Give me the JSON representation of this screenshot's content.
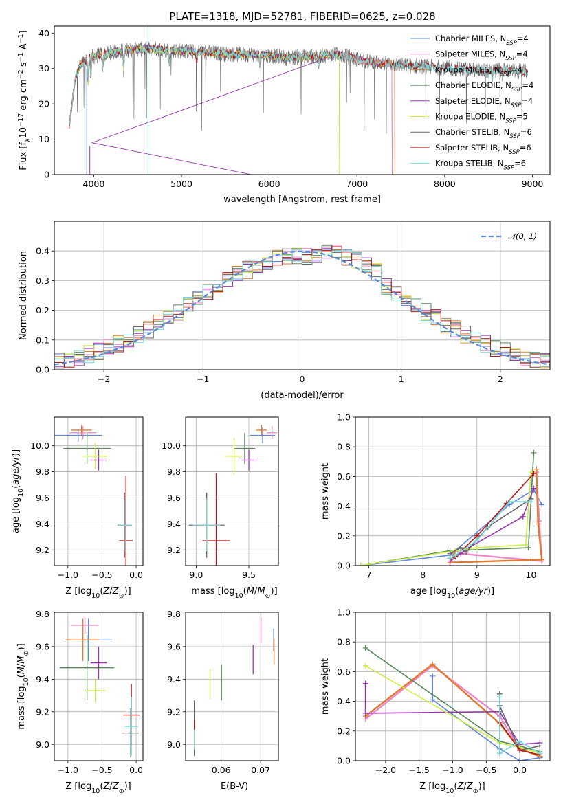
{
  "title": "PLATE=1318, MJD=52781, FIBERID=0625, z=0.028",
  "models": [
    {
      "name": "Chabrier MILES, N",
      "nssp": "4",
      "color": "#5f86dd"
    },
    {
      "name": "Salpeter MILES, N",
      "nssp": "4",
      "color": "#ee88c8"
    },
    {
      "name": "Kroupa MILES, N",
      "nssp": "4",
      "color": "#e07a2e"
    },
    {
      "name": "Chabrier ELODIE, N",
      "nssp": "4",
      "color": "#5a8a5a"
    },
    {
      "name": "Salpeter ELODIE, N",
      "nssp": "4",
      "color": "#9a33b0"
    },
    {
      "name": "Kroupa ELODIE, N",
      "nssp": "5",
      "color": "#ccee44"
    },
    {
      "name": "Chabrier STELIB, N",
      "nssp": "6",
      "color": "#666666"
    },
    {
      "name": "Salpeter STELIB, N",
      "nssp": "6",
      "color": "#b51818"
    },
    {
      "name": "Kroupa STELIB, N",
      "nssp": "6",
      "color": "#77d8d8"
    }
  ],
  "chart_data": [
    {
      "id": "spectrum",
      "type": "line",
      "xlabel": "wavelength [Angstrom, rest frame]",
      "ylabel": "Flux [f",
      "xlim": [
        3550,
        9200
      ],
      "ylim": [
        0,
        42
      ],
      "xticks": [
        4000,
        5000,
        6000,
        7000,
        8000,
        9000
      ],
      "yticks": [
        0,
        10,
        20,
        30,
        40
      ],
      "continuum": [
        [
          3720,
          20
        ],
        [
          3780,
          27
        ],
        [
          3850,
          31
        ],
        [
          3950,
          33
        ],
        [
          4100,
          34
        ],
        [
          4300,
          35
        ],
        [
          4500,
          35.5
        ],
        [
          4700,
          35.5
        ],
        [
          5000,
          35
        ],
        [
          5300,
          34.5
        ],
        [
          5600,
          34
        ],
        [
          5900,
          34
        ],
        [
          6200,
          33
        ],
        [
          6500,
          33.5
        ],
        [
          6800,
          34
        ],
        [
          7100,
          32
        ],
        [
          7500,
          31
        ],
        [
          7800,
          30.5
        ],
        [
          8100,
          30
        ],
        [
          8400,
          29.5
        ],
        [
          8700,
          29.5
        ],
        [
          8950,
          29
        ]
      ],
      "endpoints": {
        "Chabrier MILES": 7400,
        "Salpeter MILES": 7400,
        "Kroupa MILES": 7430,
        "Chabrier ELODIE": 6800,
        "Salpeter ELODIE": 6800,
        "Kroupa ELODIE": 6800,
        "Chabrier STELIB": 8950,
        "Salpeter STELIB": 8950,
        "Kroupa STELIB": 8950
      }
    },
    {
      "id": "residuals",
      "type": "histogram",
      "xlabel": "(data-model)/error",
      "ylabel": "Normed distribution",
      "xlim": [
        -2.5,
        2.5
      ],
      "ylim": [
        0,
        0.5
      ],
      "xticks": [
        -2,
        -1,
        0,
        1,
        2
      ],
      "yticks": [
        0.0,
        0.1,
        0.2,
        0.3,
        0.4
      ],
      "bin_width": 0.1,
      "legend": "𝒩(0, 1)",
      "gaussian": {
        "mean": 0,
        "sigma": 1
      }
    },
    {
      "id": "age_vs_Z",
      "type": "scatter",
      "xlabel": "Z [log",
      "ylabel": "age  [log",
      "xlim": [
        -1.2,
        0.1
      ],
      "ylim": [
        9.08,
        10.22
      ],
      "xticks": [
        -1.0,
        -0.5,
        0.0
      ],
      "yticks": [
        9.2,
        9.4,
        9.6,
        9.8,
        10.0
      ],
      "points": [
        {
          "x": -0.85,
          "y": 10.08,
          "xerr": 0.35,
          "yerr": 0.05
        },
        {
          "x": -0.78,
          "y": 10.1,
          "xerr": 0.2,
          "yerr": 0.05
        },
        {
          "x": -0.8,
          "y": 10.12,
          "xerr": 0.15,
          "yerr": 0.04
        },
        {
          "x": -0.72,
          "y": 9.98,
          "xerr": 0.35,
          "yerr": 0.12
        },
        {
          "x": -0.55,
          "y": 9.89,
          "xerr": 0.12,
          "yerr": 0.08
        },
        {
          "x": -0.6,
          "y": 9.92,
          "xerr": 0.18,
          "yerr": 0.1
        },
        {
          "x": -0.17,
          "y": 9.39,
          "xerr": 0.1,
          "yerr": 0.25
        },
        {
          "x": -0.15,
          "y": 9.27,
          "xerr": 0.1,
          "yerr": 0.5
        },
        {
          "x": -0.16,
          "y": 9.39,
          "xerr": 0.1,
          "yerr": 0.2
        }
      ]
    },
    {
      "id": "age_vs_mass",
      "type": "scatter",
      "xlabel": "mass [log",
      "ylabel": "",
      "xlim": [
        8.9,
        9.78
      ],
      "ylim": [
        9.08,
        10.22
      ],
      "xticks": [
        9.0,
        9.5
      ],
      "yticks": [
        9.2,
        9.4,
        9.6,
        9.8,
        10.0
      ],
      "points": [
        {
          "x": 9.63,
          "y": 10.08,
          "xerr": 0.12,
          "yerr": 0.06
        },
        {
          "x": 9.72,
          "y": 10.1,
          "xerr": 0.05,
          "yerr": 0.05
        },
        {
          "x": 9.62,
          "y": 10.12,
          "xerr": 0.05,
          "yerr": 0.04
        },
        {
          "x": 9.46,
          "y": 9.98,
          "xerr": 0.1,
          "yerr": 0.12
        },
        {
          "x": 9.5,
          "y": 9.89,
          "xerr": 0.08,
          "yerr": 0.08
        },
        {
          "x": 9.36,
          "y": 9.92,
          "xerr": 0.08,
          "yerr": 0.14
        },
        {
          "x": 9.1,
          "y": 9.39,
          "xerr": 0.17,
          "yerr": 0.25
        },
        {
          "x": 9.19,
          "y": 9.27,
          "xerr": 0.13,
          "yerr": 0.52
        },
        {
          "x": 9.1,
          "y": 9.39,
          "xerr": 0.13,
          "yerr": 0.2
        }
      ]
    },
    {
      "id": "weight_vs_age",
      "type": "line",
      "xlabel": "age  [log",
      "ylabel": "mass weight",
      "xlim": [
        6.75,
        10.35
      ],
      "ylim": [
        0,
        1
      ],
      "xticks": [
        7,
        8,
        9,
        10
      ],
      "yticks": [
        0.0,
        0.2,
        0.4,
        0.6,
        0.8,
        1.0
      ],
      "series": [
        [
          [
            10.2,
            0.41
          ],
          [
            10.05,
            0.51
          ],
          [
            9.6,
            0.41
          ],
          [
            8.5,
            0.07
          ],
          [
            6.85,
            0.0
          ]
        ],
        [
          [
            10.1,
            0.63
          ],
          [
            10.15,
            0.3
          ],
          [
            10.2,
            0.03
          ],
          [
            8.7,
            0.08
          ],
          [
            8.6,
            0.1
          ]
        ],
        [
          [
            10.1,
            0.65
          ],
          [
            10.13,
            0.28
          ],
          [
            10.2,
            0.04
          ],
          [
            8.5,
            0.02
          ],
          [
            8.6,
            0.1
          ]
        ],
        [
          [
            10.05,
            0.76
          ],
          [
            9.95,
            0.12
          ],
          [
            8.5,
            0.1
          ],
          [
            6.85,
            0.0
          ]
        ],
        [
          [
            10.05,
            0.52
          ],
          [
            9.85,
            0.33
          ],
          [
            8.8,
            0.11
          ],
          [
            8.7,
            0.08
          ],
          [
            8.5,
            0.03
          ]
        ],
        [
          [
            10.0,
            0.63
          ],
          [
            9.9,
            0.14
          ],
          [
            9.0,
            0.12
          ],
          [
            8.6,
            0.1
          ],
          [
            6.85,
            0.0
          ]
        ],
        [
          [
            10.0,
            0.45
          ],
          [
            9.2,
            0.26
          ],
          [
            8.8,
            0.09
          ],
          [
            8.7,
            0.12
          ],
          [
            8.5,
            0.08
          ]
        ],
        [
          [
            10.05,
            0.62
          ],
          [
            9.55,
            0.42
          ],
          [
            9.0,
            0.2
          ],
          [
            8.6,
            0.06
          ],
          [
            8.5,
            0.05
          ]
        ],
        [
          [
            10.0,
            0.43
          ],
          [
            9.6,
            0.43
          ],
          [
            9.0,
            0.17
          ],
          [
            8.6,
            0.07
          ],
          [
            8.5,
            0.05
          ]
        ]
      ]
    },
    {
      "id": "mass_vs_Z",
      "type": "scatter",
      "xlabel": "Z [log",
      "ylabel": "mass [log",
      "xlim": [
        -1.2,
        0.1
      ],
      "ylim": [
        8.9,
        9.81
      ],
      "xticks": [
        -1.0,
        -0.5,
        0.0
      ],
      "yticks": [
        9.0,
        9.2,
        9.4,
        9.6,
        9.8
      ],
      "points": [
        {
          "x": -0.7,
          "y": 9.64,
          "xerr": 0.35,
          "yerr": 0.13
        },
        {
          "x": -0.75,
          "y": 9.73,
          "xerr": 0.2,
          "yerr": 0.05
        },
        {
          "x": -0.78,
          "y": 9.64,
          "xerr": 0.25,
          "yerr": 0.13
        },
        {
          "x": -0.72,
          "y": 9.47,
          "xerr": 0.4,
          "yerr": 0.2
        },
        {
          "x": -0.55,
          "y": 9.5,
          "xerr": 0.12,
          "yerr": 0.1
        },
        {
          "x": -0.6,
          "y": 9.33,
          "xerr": 0.15,
          "yerr": 0.07
        },
        {
          "x": -0.08,
          "y": 9.07,
          "xerr": 0.12,
          "yerr": 0.15
        },
        {
          "x": -0.07,
          "y": 9.18,
          "xerr": 0.12,
          "yerr": 0.19
        },
        {
          "x": -0.07,
          "y": 9.11,
          "xerr": 0.1,
          "yerr": 0.18
        }
      ]
    },
    {
      "id": "mass_vs_EBV",
      "type": "scatter",
      "xlabel": "E(B-V)",
      "ylabel": "",
      "xlim": [
        0.051,
        0.0745
      ],
      "ylim": [
        8.9,
        9.81
      ],
      "xticks": [
        0.06,
        0.07
      ],
      "yticks": [
        9.0,
        9.2,
        9.4,
        9.6,
        9.8
      ],
      "points": [
        {
          "x": 0.0733,
          "y": 9.64,
          "xerr": 0,
          "yerr": 0.07
        },
        {
          "x": 0.0701,
          "y": 9.7,
          "xerr": 0,
          "yerr": 0.08
        },
        {
          "x": 0.0734,
          "y": 9.57,
          "xerr": 0,
          "yerr": 0.08
        },
        {
          "x": 0.0601,
          "y": 9.38,
          "xerr": 0,
          "yerr": 0.11
        },
        {
          "x": 0.0681,
          "y": 9.52,
          "xerr": 0,
          "yerr": 0.09
        },
        {
          "x": 0.0572,
          "y": 9.37,
          "xerr": 0,
          "yerr": 0.09
        },
        {
          "x": 0.0532,
          "y": 9.1,
          "xerr": 0,
          "yerr": 0.17
        },
        {
          "x": 0.0532,
          "y": 9.06,
          "xerr": 0,
          "yerr": 0.09
        },
        {
          "x": 0.0532,
          "y": 9.03,
          "xerr": 0,
          "yerr": 0.06
        }
      ]
    },
    {
      "id": "weight_vs_Z",
      "type": "line",
      "xlabel": "Z [log",
      "ylabel": "mass weight",
      "xlim": [
        -2.45,
        0.45
      ],
      "ylim": [
        0,
        1
      ],
      "xticks": [
        -2.0,
        -1.5,
        -1.0,
        -0.5,
        0.0
      ],
      "yticks": [
        0.0,
        0.2,
        0.4,
        0.6,
        0.8,
        1.0
      ],
      "series": [
        [
          [
            -1.3,
            0.57
          ],
          [
            -1.3,
            0.41
          ],
          [
            -0.3,
            0.08
          ],
          [
            0.0,
            0.0
          ],
          [
            0.3,
            0.02
          ]
        ],
        [
          [
            -2.3,
            0.28
          ],
          [
            -1.3,
            0.64
          ],
          [
            -0.3,
            0.3
          ],
          [
            0.0,
            0.08
          ],
          [
            0.3,
            0.03
          ]
        ],
        [
          [
            -2.3,
            0.3
          ],
          [
            -1.3,
            0.65
          ],
          [
            -0.3,
            0.25
          ],
          [
            0.0,
            0.08
          ],
          [
            0.3,
            0.03
          ]
        ],
        [
          [
            -2.3,
            0.76
          ],
          [
            -0.3,
            0.13
          ],
          [
            0.0,
            0.1
          ],
          [
            0.3,
            0.06
          ]
        ],
        [
          [
            -2.3,
            0.52
          ],
          [
            -2.3,
            0.32
          ],
          [
            -0.3,
            0.33
          ],
          [
            0.0,
            0.11
          ],
          [
            0.3,
            0.12
          ]
        ],
        [
          [
            -2.3,
            0.64
          ],
          [
            -0.3,
            0.12
          ],
          [
            0.0,
            0.09
          ],
          [
            0.3,
            0.05
          ]
        ],
        [
          [
            -0.3,
            0.45
          ],
          [
            -0.3,
            0.37
          ],
          [
            0.0,
            0.07
          ],
          [
            0.3,
            0.1
          ]
        ],
        [
          [
            -0.3,
            0.26
          ],
          [
            0.0,
            0.07
          ],
          [
            0.3,
            0.04
          ]
        ],
        [
          [
            -0.3,
            0.43
          ],
          [
            -0.3,
            0.05
          ],
          [
            0.0,
            0.13
          ],
          [
            0.3,
            0.05
          ]
        ]
      ]
    }
  ]
}
